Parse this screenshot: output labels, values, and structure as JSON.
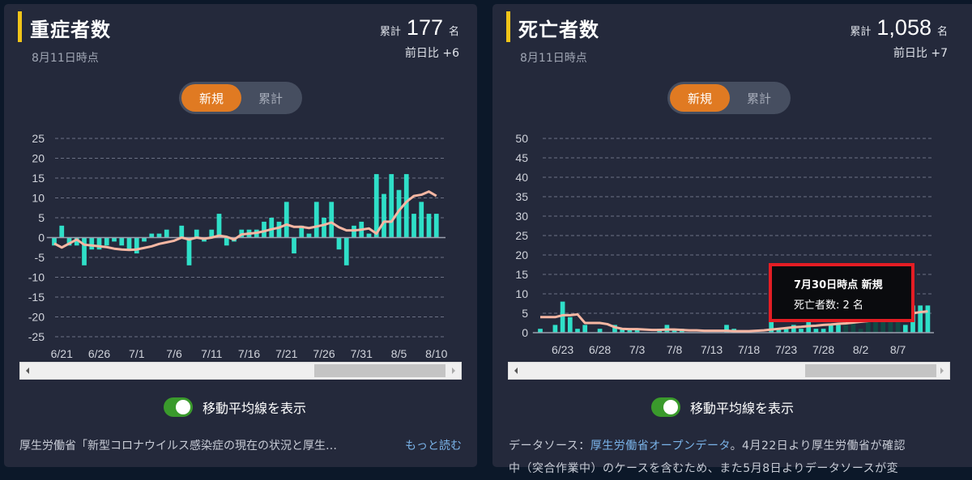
{
  "cards": [
    {
      "title": "重症者数",
      "as_of": "8月11日時点",
      "total_label": "累計",
      "total_value": "177",
      "total_unit": "名",
      "diff_label": "前日比",
      "diff_value": "+6",
      "segment": {
        "options": [
          "新規",
          "累計"
        ],
        "selected": "新規"
      },
      "toggle": {
        "label": "移動平均線を表示",
        "on": true
      },
      "footer": {
        "text": "厚生労働省「新型コロナウイルス感染症の現在の状況と厚生…",
        "more": "もっと読む"
      }
    },
    {
      "title": "死亡者数",
      "as_of": "8月11日時点",
      "total_label": "累計",
      "total_value": "1,058",
      "total_unit": "名",
      "diff_label": "前日比",
      "diff_value": "+7",
      "segment": {
        "options": [
          "新規",
          "累計"
        ],
        "selected": "新規"
      },
      "toggle": {
        "label": "移動平均線を表示",
        "on": true
      },
      "footer": {
        "prefix": "データソース：",
        "link": "厚生労働省オープンデータ",
        "line1_rest": "。4月22日より厚生労働省が確認",
        "line2": "中（突合作業中）のケースを含むため、また5月8日よりデータソースが変"
      },
      "tooltip": {
        "title": "7月30日時点 新規",
        "body": "死亡者数: 2 名"
      }
    }
  ],
  "colors": {
    "bar": "#2fdfc8",
    "moving_average": "#f7b7a3",
    "accent": "#e07a22",
    "title_bar": "#f0c419",
    "toggle_on": "#3a9a2c",
    "tooltip_highlight": "#e41d24"
  },
  "chart_data": [
    {
      "type": "bar",
      "title": "重症者数 (新規)",
      "ylim": [
        -25,
        25
      ],
      "yticks": [
        25,
        20,
        15,
        10,
        5,
        0,
        -5,
        -10,
        -15,
        -20,
        -25
      ],
      "xtick_labels": [
        "6/21",
        "6/26",
        "7/1",
        "7/6",
        "7/11",
        "7/16",
        "7/21",
        "7/26",
        "7/31",
        "8/5",
        "8/10"
      ],
      "grid": true,
      "x": [
        "6/20",
        "6/21",
        "6/22",
        "6/23",
        "6/24",
        "6/25",
        "6/26",
        "6/27",
        "6/28",
        "6/29",
        "6/30",
        "7/1",
        "7/2",
        "7/3",
        "7/4",
        "7/5",
        "7/6",
        "7/7",
        "7/8",
        "7/9",
        "7/10",
        "7/11",
        "7/12",
        "7/13",
        "7/14",
        "7/15",
        "7/16",
        "7/17",
        "7/18",
        "7/19",
        "7/20",
        "7/21",
        "7/22",
        "7/23",
        "7/24",
        "7/25",
        "7/26",
        "7/27",
        "7/28",
        "7/29",
        "7/30",
        "7/31",
        "8/1",
        "8/2",
        "8/3",
        "8/4",
        "8/5",
        "8/6",
        "8/7",
        "8/8",
        "8/9",
        "8/10"
      ],
      "series": [
        {
          "name": "新規",
          "values": [
            -2,
            3,
            -2,
            -2,
            -7,
            -3,
            -3,
            -2,
            -1,
            -2,
            -3,
            -4,
            -1,
            1,
            1,
            2,
            0,
            3,
            -7,
            2,
            -1,
            2,
            6,
            -2,
            -1,
            2,
            2,
            2,
            4,
            5,
            4,
            9,
            -4,
            3,
            1,
            9,
            5,
            9,
            -3,
            -7,
            3,
            4,
            1,
            16,
            11,
            16,
            12,
            16,
            6,
            9,
            6,
            6
          ]
        },
        {
          "name": "移動平均",
          "values": [
            -1.5,
            -2.5,
            -1.5,
            -0.5,
            -1.8,
            -2,
            -2.2,
            -2.4,
            -2.8,
            -3,
            -3.1,
            -3,
            -2.6,
            -2.2,
            -1.6,
            -1.2,
            -0.8,
            0,
            -0.5,
            0,
            -0.3,
            0,
            0.5,
            0.2,
            -0.5,
            0.8,
            1,
            1.2,
            1.6,
            2.1,
            2.5,
            3.3,
            2.7,
            2.7,
            2.4,
            2.8,
            3.2,
            3.8,
            2.6,
            1.8,
            1.8,
            2,
            2.3,
            1,
            4,
            4,
            6.8,
            9,
            10.5,
            10.8,
            11.6,
            10.5
          ]
        }
      ]
    },
    {
      "type": "bar",
      "title": "死亡者数 (新規)",
      "ylim": [
        0,
        50
      ],
      "yticks": [
        50,
        45,
        40,
        35,
        30,
        25,
        20,
        15,
        10,
        5,
        0
      ],
      "xtick_labels": [
        "6/23",
        "6/28",
        "7/3",
        "7/8",
        "7/13",
        "7/18",
        "7/23",
        "7/28",
        "8/2",
        "8/7"
      ],
      "grid": true,
      "x": [
        "6/20",
        "6/21",
        "6/22",
        "6/23",
        "6/24",
        "6/25",
        "6/26",
        "6/27",
        "6/28",
        "6/29",
        "6/30",
        "7/1",
        "7/2",
        "7/3",
        "7/4",
        "7/5",
        "7/6",
        "7/7",
        "7/8",
        "7/9",
        "7/10",
        "7/11",
        "7/12",
        "7/13",
        "7/14",
        "7/15",
        "7/16",
        "7/17",
        "7/18",
        "7/19",
        "7/20",
        "7/21",
        "7/22",
        "7/23",
        "7/24",
        "7/25",
        "7/26",
        "7/27",
        "7/28",
        "7/29",
        "7/30",
        "7/31",
        "8/1",
        "8/2",
        "8/3",
        "8/4",
        "8/5",
        "8/6",
        "8/7",
        "8/8",
        "8/9",
        "8/10",
        "8/11"
      ],
      "series": [
        {
          "name": "新規",
          "values": [
            1,
            0,
            2,
            8,
            4,
            1,
            2,
            0,
            1,
            0,
            2,
            1,
            1,
            1,
            0,
            0,
            1,
            2,
            1,
            1,
            0,
            0,
            0,
            0,
            0,
            2,
            1,
            0,
            0,
            0,
            0,
            3,
            1,
            1,
            2,
            1,
            3,
            1,
            1,
            2,
            2,
            2,
            4,
            1,
            4,
            6,
            4,
            7,
            6,
            2,
            7,
            7,
            7
          ]
        },
        {
          "name": "移動平均",
          "values": [
            4,
            4,
            4,
            4.5,
            4.5,
            4.7,
            2.5,
            2.5,
            2.5,
            2.2,
            1.4,
            1,
            0.9,
            0.9,
            0.8,
            0.7,
            0.7,
            0.8,
            0.8,
            0.7,
            0.6,
            0.6,
            0.5,
            0.5,
            0.5,
            0.5,
            0.4,
            0.4,
            0.4,
            0.5,
            0.6,
            0.8,
            1,
            1.2,
            1.4,
            1.5,
            1.7,
            1.8,
            2,
            2.1,
            2.3,
            2.4,
            2.6,
            2.8,
            3,
            3.3,
            3.6,
            4,
            4.3,
            4.6,
            5,
            5.3,
            5.5
          ]
        }
      ],
      "active_point": {
        "x": "7/30",
        "value": 2
      }
    }
  ]
}
